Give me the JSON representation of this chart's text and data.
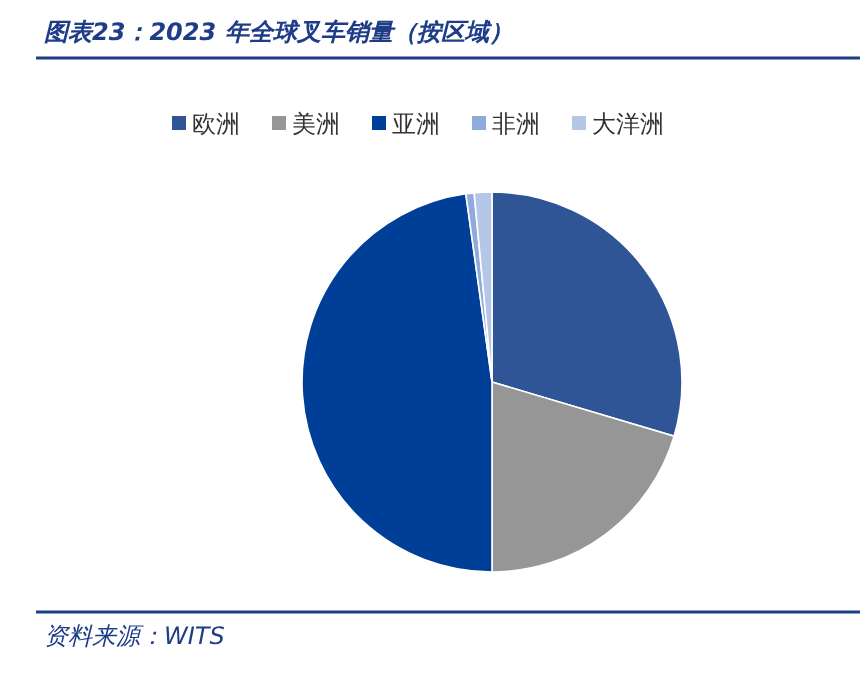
{
  "chart_data": {
    "type": "pie",
    "title": "图表23：2023 年全球叉车销量（按区域）",
    "categories": [
      "欧洲",
      "美洲",
      "亚洲",
      "非洲",
      "大洋洲"
    ],
    "values": [
      29.6,
      20.4,
      47.8,
      0.7,
      1.5
    ],
    "colors": [
      "#2f5597",
      "#969696",
      "#003f98",
      "#8faadc",
      "#b4c7e7"
    ],
    "legend": "top",
    "annotations": [
      "资料来源：WITS"
    ]
  }
}
